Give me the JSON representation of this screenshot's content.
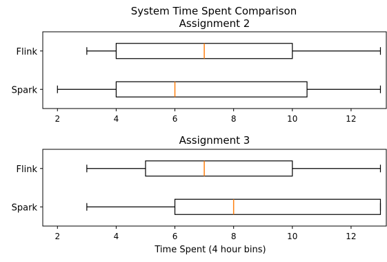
{
  "figure": {
    "suptitle": "System Time Spent Comparison"
  },
  "chart_data": [
    {
      "type": "boxplot",
      "orientation": "horizontal",
      "title": "Assignment 2",
      "xlabel": "",
      "xlim": [
        1.5,
        13.2
      ],
      "xticks": [
        2,
        4,
        6,
        8,
        10,
        12
      ],
      "categories": [
        "Flink",
        "Spark"
      ],
      "boxes": [
        {
          "name": "Flink",
          "min": 3,
          "q1": 4,
          "median": 7,
          "q3": 10,
          "max": 13
        },
        {
          "name": "Spark",
          "min": 2,
          "q1": 4,
          "median": 6,
          "q3": 10.5,
          "max": 13
        }
      ],
      "colors": {
        "box": "#000000",
        "median": "#ff7f0e"
      }
    },
    {
      "type": "boxplot",
      "orientation": "horizontal",
      "title": "Assignment 3",
      "xlabel": "Time Spent (4 hour bins)",
      "xlim": [
        1.5,
        13.2
      ],
      "xticks": [
        2,
        4,
        6,
        8,
        10,
        12
      ],
      "categories": [
        "Flink",
        "Spark"
      ],
      "boxes": [
        {
          "name": "Flink",
          "min": 3,
          "q1": 5,
          "median": 7,
          "q3": 10,
          "max": 13
        },
        {
          "name": "Spark",
          "min": 3,
          "q1": 6,
          "median": 8,
          "q3": 13,
          "max": 13
        }
      ],
      "colors": {
        "box": "#000000",
        "median": "#ff7f0e"
      }
    }
  ]
}
